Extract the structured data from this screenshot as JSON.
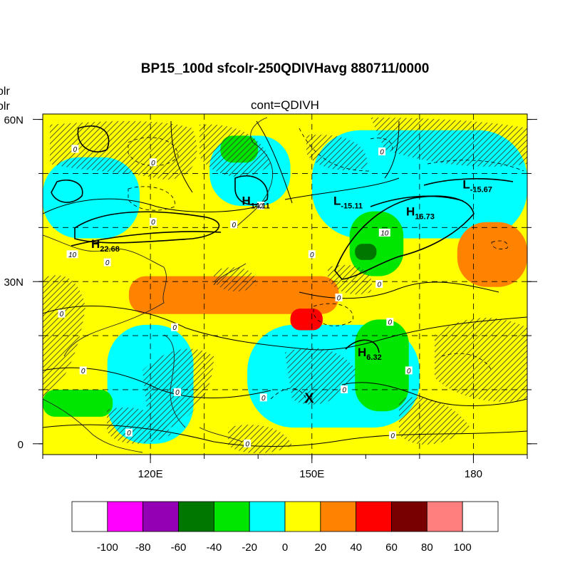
{
  "title": "BP15_100d sfcolr-250QDIVHavg  880711/0000",
  "subtitle": "cont=QDIVH",
  "left_label_fragments": [
    "olr",
    "olr"
  ],
  "chart_data": {
    "type": "heatmap",
    "title": "BP15_100d sfcolr-250QDIVHavg  880711/0000",
    "subtitle": "cont=QDIVH",
    "projection": "cylindrical equidistant",
    "lon_range": [
      100,
      190
    ],
    "lat_range": [
      -2,
      61
    ],
    "y_ticks": [
      {
        "value": 60,
        "label": "60N"
      },
      {
        "value": 30,
        "label": "30N"
      },
      {
        "value": 0,
        "label": "0"
      }
    ],
    "x_ticks": [
      {
        "value": 120,
        "label": "120E"
      },
      {
        "value": 150,
        "label": "150E"
      },
      {
        "value": 180,
        "label": "180"
      }
    ],
    "grid": true,
    "grid_lon": [
      120,
      130,
      150,
      170,
      180
    ],
    "grid_lat": [
      10,
      20,
      30,
      40,
      50
    ],
    "colorbar": {
      "position": "bottom",
      "levels": [
        -100,
        -80,
        -60,
        -40,
        -20,
        0,
        20,
        40,
        60,
        80,
        100
      ],
      "labels": [
        "-100",
        "-80",
        "-60",
        "-40",
        "-20",
        "0",
        "20",
        "40",
        "60",
        "80",
        "100"
      ],
      "colors": [
        "#ffffff",
        "#ff00ff",
        "#9400b4",
        "#007800",
        "#00e600",
        "#00ffff",
        "#ffff00",
        "#ff8200",
        "#ff0000",
        "#780000",
        "#ff7f7f",
        "#ffffff"
      ]
    },
    "pressure_centers": [
      {
        "type": "H",
        "value": "22.68",
        "lon": 109,
        "lat": 37
      },
      {
        "type": "H",
        "value": "14.11",
        "lon": 137,
        "lat": 45
      },
      {
        "type": "L",
        "value": "-15.11",
        "lon": 154,
        "lat": 45
      },
      {
        "type": "H",
        "value": "16.73",
        "lon": 167.5,
        "lat": 43
      },
      {
        "type": "L",
        "value": "-15.67",
        "lon": 178,
        "lat": 48
      },
      {
        "type": "H",
        "value": "6.32",
        "lon": 158.5,
        "lat": 17
      }
    ],
    "contour_labels": [
      {
        "text": "0",
        "lon": 106,
        "lat": 54.5
      },
      {
        "text": "0",
        "lon": 120.5,
        "lat": 52
      },
      {
        "text": "0",
        "lon": 120.5,
        "lat": 41
      },
      {
        "text": "0",
        "lon": 135.5,
        "lat": 40.5
      },
      {
        "text": "0",
        "lon": 112,
        "lat": 33.5
      },
      {
        "text": "0",
        "lon": 103.5,
        "lat": 24
      },
      {
        "text": "0",
        "lon": 124.5,
        "lat": 21.5
      },
      {
        "text": "0",
        "lon": 107.5,
        "lat": 13.5
      },
      {
        "text": "0",
        "lon": 125,
        "lat": 9.5
      },
      {
        "text": "0",
        "lon": 116,
        "lat": 2
      },
      {
        "text": "0",
        "lon": 141,
        "lat": 8.5
      },
      {
        "text": "0",
        "lon": 140.5,
        "lat": 44
      },
      {
        "text": "0",
        "lon": 155,
        "lat": 27
      },
      {
        "text": "0",
        "lon": 150,
        "lat": 35
      },
      {
        "text": "0",
        "lon": 162.5,
        "lat": 29.5
      },
      {
        "text": "0",
        "lon": 164.5,
        "lat": 22.5
      },
      {
        "text": "0",
        "lon": 163,
        "lat": 54
      },
      {
        "text": "0",
        "lon": 168,
        "lat": 13.5
      },
      {
        "text": "0",
        "lon": 156,
        "lat": 10
      },
      {
        "text": "0",
        "lon": 165,
        "lat": 1.5
      },
      {
        "text": "0",
        "lon": 138,
        "lat": 0
      },
      {
        "text": "10",
        "lon": 105.5,
        "lat": 35
      },
      {
        "text": "10",
        "lon": 163.5,
        "lat": 39
      }
    ],
    "marker": {
      "text": "X",
      "lon": 149.5,
      "lat": 8.5
    },
    "regions": [
      {
        "value": 10,
        "color": "#ffff00",
        "lon": [
          100,
          190
        ],
        "lat": [
          -2,
          61
        ]
      },
      {
        "value": -10,
        "color": "#00ffff",
        "lon": [
          100,
          118
        ],
        "lat": [
          38,
          53
        ]
      },
      {
        "value": -10,
        "color": "#00ffff",
        "lon": [
          131,
          146
        ],
        "lat": [
          44,
          57
        ]
      },
      {
        "value": -10,
        "color": "#00ffff",
        "lon": [
          112,
          128
        ],
        "lat": [
          0,
          22
        ]
      },
      {
        "value": -10,
        "color": "#00ffff",
        "lon": [
          138,
          170
        ],
        "lat": [
          3,
          22
        ]
      },
      {
        "value": -10,
        "color": "#00ffff",
        "lon": [
          150,
          190
        ],
        "lat": [
          38,
          58
        ]
      },
      {
        "value": -30,
        "color": "#00e600",
        "lon": [
          157,
          167
        ],
        "lat": [
          31,
          43
        ]
      },
      {
        "value": -30,
        "color": "#00e600",
        "lon": [
          100,
          113
        ],
        "lat": [
          5,
          10
        ]
      },
      {
        "value": -30,
        "color": "#00e600",
        "lon": [
          133,
          140
        ],
        "lat": [
          52,
          57
        ]
      },
      {
        "value": -30,
        "color": "#00e600",
        "lon": [
          158,
          168
        ],
        "lat": [
          6,
          23
        ]
      },
      {
        "value": -50,
        "color": "#007800",
        "lon": [
          158,
          162
        ],
        "lat": [
          34,
          37
        ]
      },
      {
        "value": 30,
        "color": "#ff8200",
        "lon": [
          116,
          155
        ],
        "lat": [
          24,
          31
        ]
      },
      {
        "value": 30,
        "color": "#ff8200",
        "lon": [
          177,
          190
        ],
        "lat": [
          29,
          41
        ]
      },
      {
        "value": 50,
        "color": "#ff0000",
        "lon": [
          146,
          152
        ],
        "lat": [
          21,
          25
        ]
      }
    ]
  }
}
